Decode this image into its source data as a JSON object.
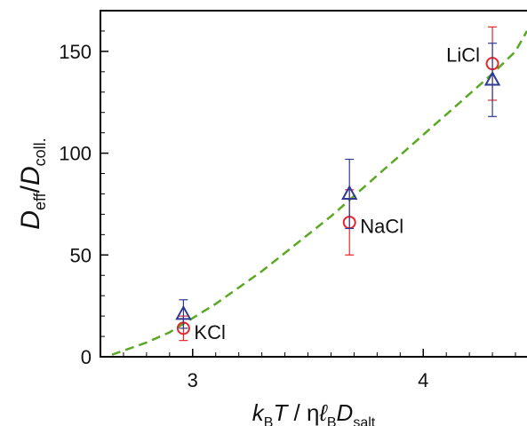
{
  "chart_data": {
    "type": "scatter",
    "title": "",
    "xlabel": {
      "parts": [
        {
          "text": "k",
          "style": "italic"
        },
        {
          "text": "B",
          "style": "sub"
        },
        {
          "text": "T",
          "style": "italic"
        },
        {
          "text": " / η",
          "style": "normal"
        },
        {
          "text": "ℓ",
          "style": "italic"
        },
        {
          "text": "B",
          "style": "sub"
        },
        {
          "text": "D",
          "style": "italic"
        },
        {
          "text": "salt",
          "style": "sub"
        }
      ]
    },
    "ylabel": {
      "parts": [
        {
          "text": "D",
          "style": "italic"
        },
        {
          "text": "eff",
          "style": "sub"
        },
        {
          "text": "/",
          "style": "normal"
        },
        {
          "text": "D",
          "style": "italic"
        },
        {
          "text": "coll.",
          "style": "sub"
        }
      ]
    },
    "xlim": [
      2.6,
      4.45
    ],
    "ylim": [
      0,
      170
    ],
    "xticks": [
      3,
      4
    ],
    "yticks": [
      0,
      50,
      100,
      150
    ],
    "grid": false,
    "series": [
      {
        "marker": "circle",
        "color": "#e8262a",
        "points": [
          {
            "x": 2.96,
            "y": 14,
            "err": 6
          },
          {
            "x": 3.68,
            "y": 66,
            "err": 16
          },
          {
            "x": 4.3,
            "y": 144,
            "err": 18
          }
        ]
      },
      {
        "marker": "triangle",
        "color": "#2e3a93",
        "points": [
          {
            "x": 2.96,
            "y": 21,
            "err": 7
          },
          {
            "x": 3.68,
            "y": 80,
            "err": 17
          },
          {
            "x": 4.3,
            "y": 136,
            "err": 18
          }
        ]
      }
    ],
    "annotations": [
      {
        "text": "KCl",
        "x": 2.96,
        "y": 14,
        "anchor": "right-of"
      },
      {
        "text": "NaCl",
        "x": 3.68,
        "y": 66,
        "anchor": "right-of"
      },
      {
        "text": "LiCl",
        "x": 4.3,
        "y": 144,
        "anchor": "left-of"
      }
    ],
    "fit_curve": {
      "style": "dashed",
      "color": "#5aa823",
      "x": [
        2.65,
        2.7,
        2.8,
        2.9,
        3.0,
        3.1,
        3.2,
        3.3,
        3.4,
        3.5,
        3.6,
        3.7,
        3.8,
        3.9,
        4.0,
        4.1,
        4.2,
        4.3,
        4.4,
        4.45
      ],
      "y": [
        1,
        3,
        7,
        12,
        19,
        26,
        34,
        42,
        51,
        60,
        69,
        79,
        89,
        99,
        109,
        119,
        129,
        139,
        150,
        160
      ]
    }
  }
}
